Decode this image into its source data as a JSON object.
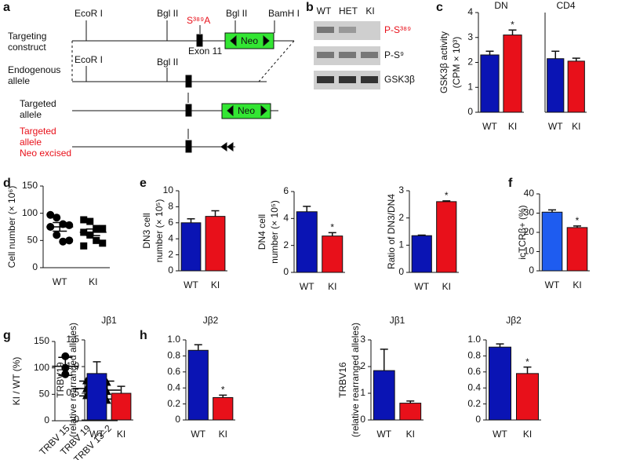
{
  "panel_labels": [
    "a",
    "b",
    "c",
    "d",
    "e",
    "f",
    "g",
    "h"
  ],
  "diagram": {
    "rows": [
      [
        "Targeting",
        "construct"
      ],
      [
        "Endogenous",
        "allele"
      ],
      [
        "Targeted",
        "allele"
      ],
      [
        "Targeted",
        "allele",
        "Neo excised"
      ]
    ],
    "sites": [
      "EcoR I",
      "Bgl II",
      "Bgl II",
      "BamH I",
      "EcoR I",
      "Bgl II"
    ],
    "mutation": "S³⁸⁹A",
    "exon": "Exon 11",
    "cassette": "Neo"
  },
  "blot": {
    "lanes": [
      "WT",
      "HET",
      "KI"
    ],
    "rows": [
      "P-S³⁸⁹",
      "P-S⁹",
      "GSK3β"
    ]
  },
  "chart_data": [
    {
      "type": "bar",
      "title": "DN",
      "ylabel": [
        "GSK3β activity",
        "(CPM × 10³)"
      ],
      "categories": [
        "WT",
        "KI"
      ],
      "values": [
        2.3,
        3.1
      ],
      "errors": [
        0.15,
        0.2
      ],
      "colors": [
        "#0a14b4",
        "#e8101a"
      ],
      "significance": [
        null,
        "*"
      ],
      "ylim": [
        0,
        4
      ],
      "yticks": [
        0,
        1,
        2,
        3,
        4
      ]
    },
    {
      "type": "bar",
      "title": "CD4",
      "categories": [
        "WT",
        "KI"
      ],
      "values": [
        2.15,
        2.05
      ],
      "errors": [
        0.3,
        0.12
      ],
      "colors": [
        "#0a14b4",
        "#e8101a"
      ],
      "ylim": [
        0,
        4
      ]
    },
    {
      "type": "dot",
      "ylabel": [
        "Cell number (× 10⁶)"
      ],
      "categories": [
        "WT",
        "KI"
      ],
      "points": [
        [
          97,
          92,
          80,
          78,
          75,
          60,
          48,
          50
        ],
        [
          88,
          85,
          72,
          72,
          65,
          60,
          50,
          45,
          40
        ]
      ],
      "means": [
        75,
        65
      ],
      "errors": [
        8,
        6
      ],
      "markers": [
        "circle",
        "square"
      ],
      "color": "#000000",
      "ylim": [
        0,
        150
      ],
      "yticks": [
        0,
        50,
        100,
        150
      ]
    },
    {
      "type": "bar",
      "ylabel": [
        "DN3 cell",
        "number (× 10⁵)"
      ],
      "categories": [
        "WT",
        "KI"
      ],
      "values": [
        6.0,
        6.8
      ],
      "errors": [
        0.5,
        0.7
      ],
      "colors": [
        "#0a14b4",
        "#e8101a"
      ],
      "ylim": [
        0,
        10
      ],
      "yticks": [
        0,
        2,
        4,
        6,
        8,
        10
      ]
    },
    {
      "type": "bar",
      "ylabel": [
        "DN4 cell",
        "number (× 10⁵)"
      ],
      "categories": [
        "WT",
        "KI"
      ],
      "values": [
        4.5,
        2.7
      ],
      "errors": [
        0.4,
        0.25
      ],
      "colors": [
        "#0a14b4",
        "#e8101a"
      ],
      "significance": [
        null,
        "*"
      ],
      "ylim": [
        0,
        6
      ],
      "yticks": [
        0,
        2,
        4,
        6
      ]
    },
    {
      "type": "bar",
      "ylabel": [
        "Ratio of DN3/DN4"
      ],
      "categories": [
        "WT",
        "KI"
      ],
      "values": [
        1.35,
        2.6
      ],
      "errors": [
        0.02,
        0.03
      ],
      "colors": [
        "#0a14b4",
        "#e8101a"
      ],
      "significance": [
        null,
        "*"
      ],
      "ylim": [
        0,
        3
      ],
      "yticks": [
        0,
        1,
        2,
        3
      ]
    },
    {
      "type": "bar",
      "ylabel": [
        "icTCRβ+ (%)"
      ],
      "categories": [
        "WT",
        "KI"
      ],
      "values": [
        30.5,
        22.5
      ],
      "errors": [
        1.2,
        0.8
      ],
      "colors": [
        "#1e5cf0",
        "#e8101a"
      ],
      "significance": [
        null,
        "*"
      ],
      "ylim": [
        0,
        40
      ],
      "yticks": [
        0,
        10,
        20,
        30,
        40
      ]
    },
    {
      "type": "dot",
      "ylabel": [
        "KI / WT (%)"
      ],
      "categories": [
        "TRBV 15",
        "TRBV 19",
        "TRBV 13–2"
      ],
      "points": [
        [
          122,
          100,
          88
        ],
        [
          75,
          60,
          47
        ],
        [
          72,
          55,
          38
        ]
      ],
      "means": [
        103,
        61,
        58
      ],
      "errors": [
        17,
        14,
        17
      ],
      "markers": [
        "circle",
        "triangle",
        "triangle"
      ],
      "color": "#000000",
      "ylim": [
        0,
        150
      ],
      "yticks": [
        0,
        50,
        100,
        150
      ],
      "rotate_labels": true
    },
    {
      "type": "bar",
      "title": "Jβ1",
      "ylabel": [
        "TRBV19",
        "(relative rearranged alleles)"
      ],
      "categories": [
        "WT",
        "KI"
      ],
      "values": [
        0.87,
        0.5
      ],
      "errors": [
        0.22,
        0.13
      ],
      "colors": [
        "#0a14b4",
        "#e8101a"
      ],
      "ylim": [
        0,
        1.5
      ],
      "yticks": [
        0,
        0.5,
        {
          "value": 1,
          "label": "1.0"
        },
        1.5
      ]
    },
    {
      "type": "bar",
      "title": "Jβ2",
      "categories": [
        "WT",
        "KI"
      ],
      "values": [
        0.87,
        0.28
      ],
      "errors": [
        0.07,
        0.03
      ],
      "colors": [
        "#0a14b4",
        "#e8101a"
      ],
      "significance": [
        null,
        "*"
      ],
      "ylim": [
        0,
        1
      ],
      "yticks": [
        0,
        0.2,
        0.4,
        0.6,
        0.8,
        {
          "value": 1,
          "label": "1.0"
        }
      ]
    },
    {
      "type": "bar",
      "title": "Jβ1",
      "ylabel": [
        "TRBV16",
        "(relative rearranged alleles)"
      ],
      "categories": [
        "WT",
        "KI"
      ],
      "values": [
        1.85,
        0.63
      ],
      "errors": [
        0.8,
        0.08
      ],
      "colors": [
        "#0a14b4",
        "#e8101a"
      ],
      "ylim": [
        0,
        3
      ],
      "yticks": [
        0,
        1,
        2,
        3
      ]
    },
    {
      "type": "bar",
      "title": "Jβ2",
      "categories": [
        "WT",
        "KI"
      ],
      "values": [
        0.91,
        0.58
      ],
      "errors": [
        0.04,
        0.08
      ],
      "colors": [
        "#0a14b4",
        "#e8101a"
      ],
      "significance": [
        null,
        "*"
      ],
      "ylim": [
        0,
        1
      ],
      "yticks": [
        0,
        0.2,
        0.4,
        0.6,
        0.8,
        {
          "value": 1,
          "label": "1.0"
        }
      ]
    }
  ]
}
